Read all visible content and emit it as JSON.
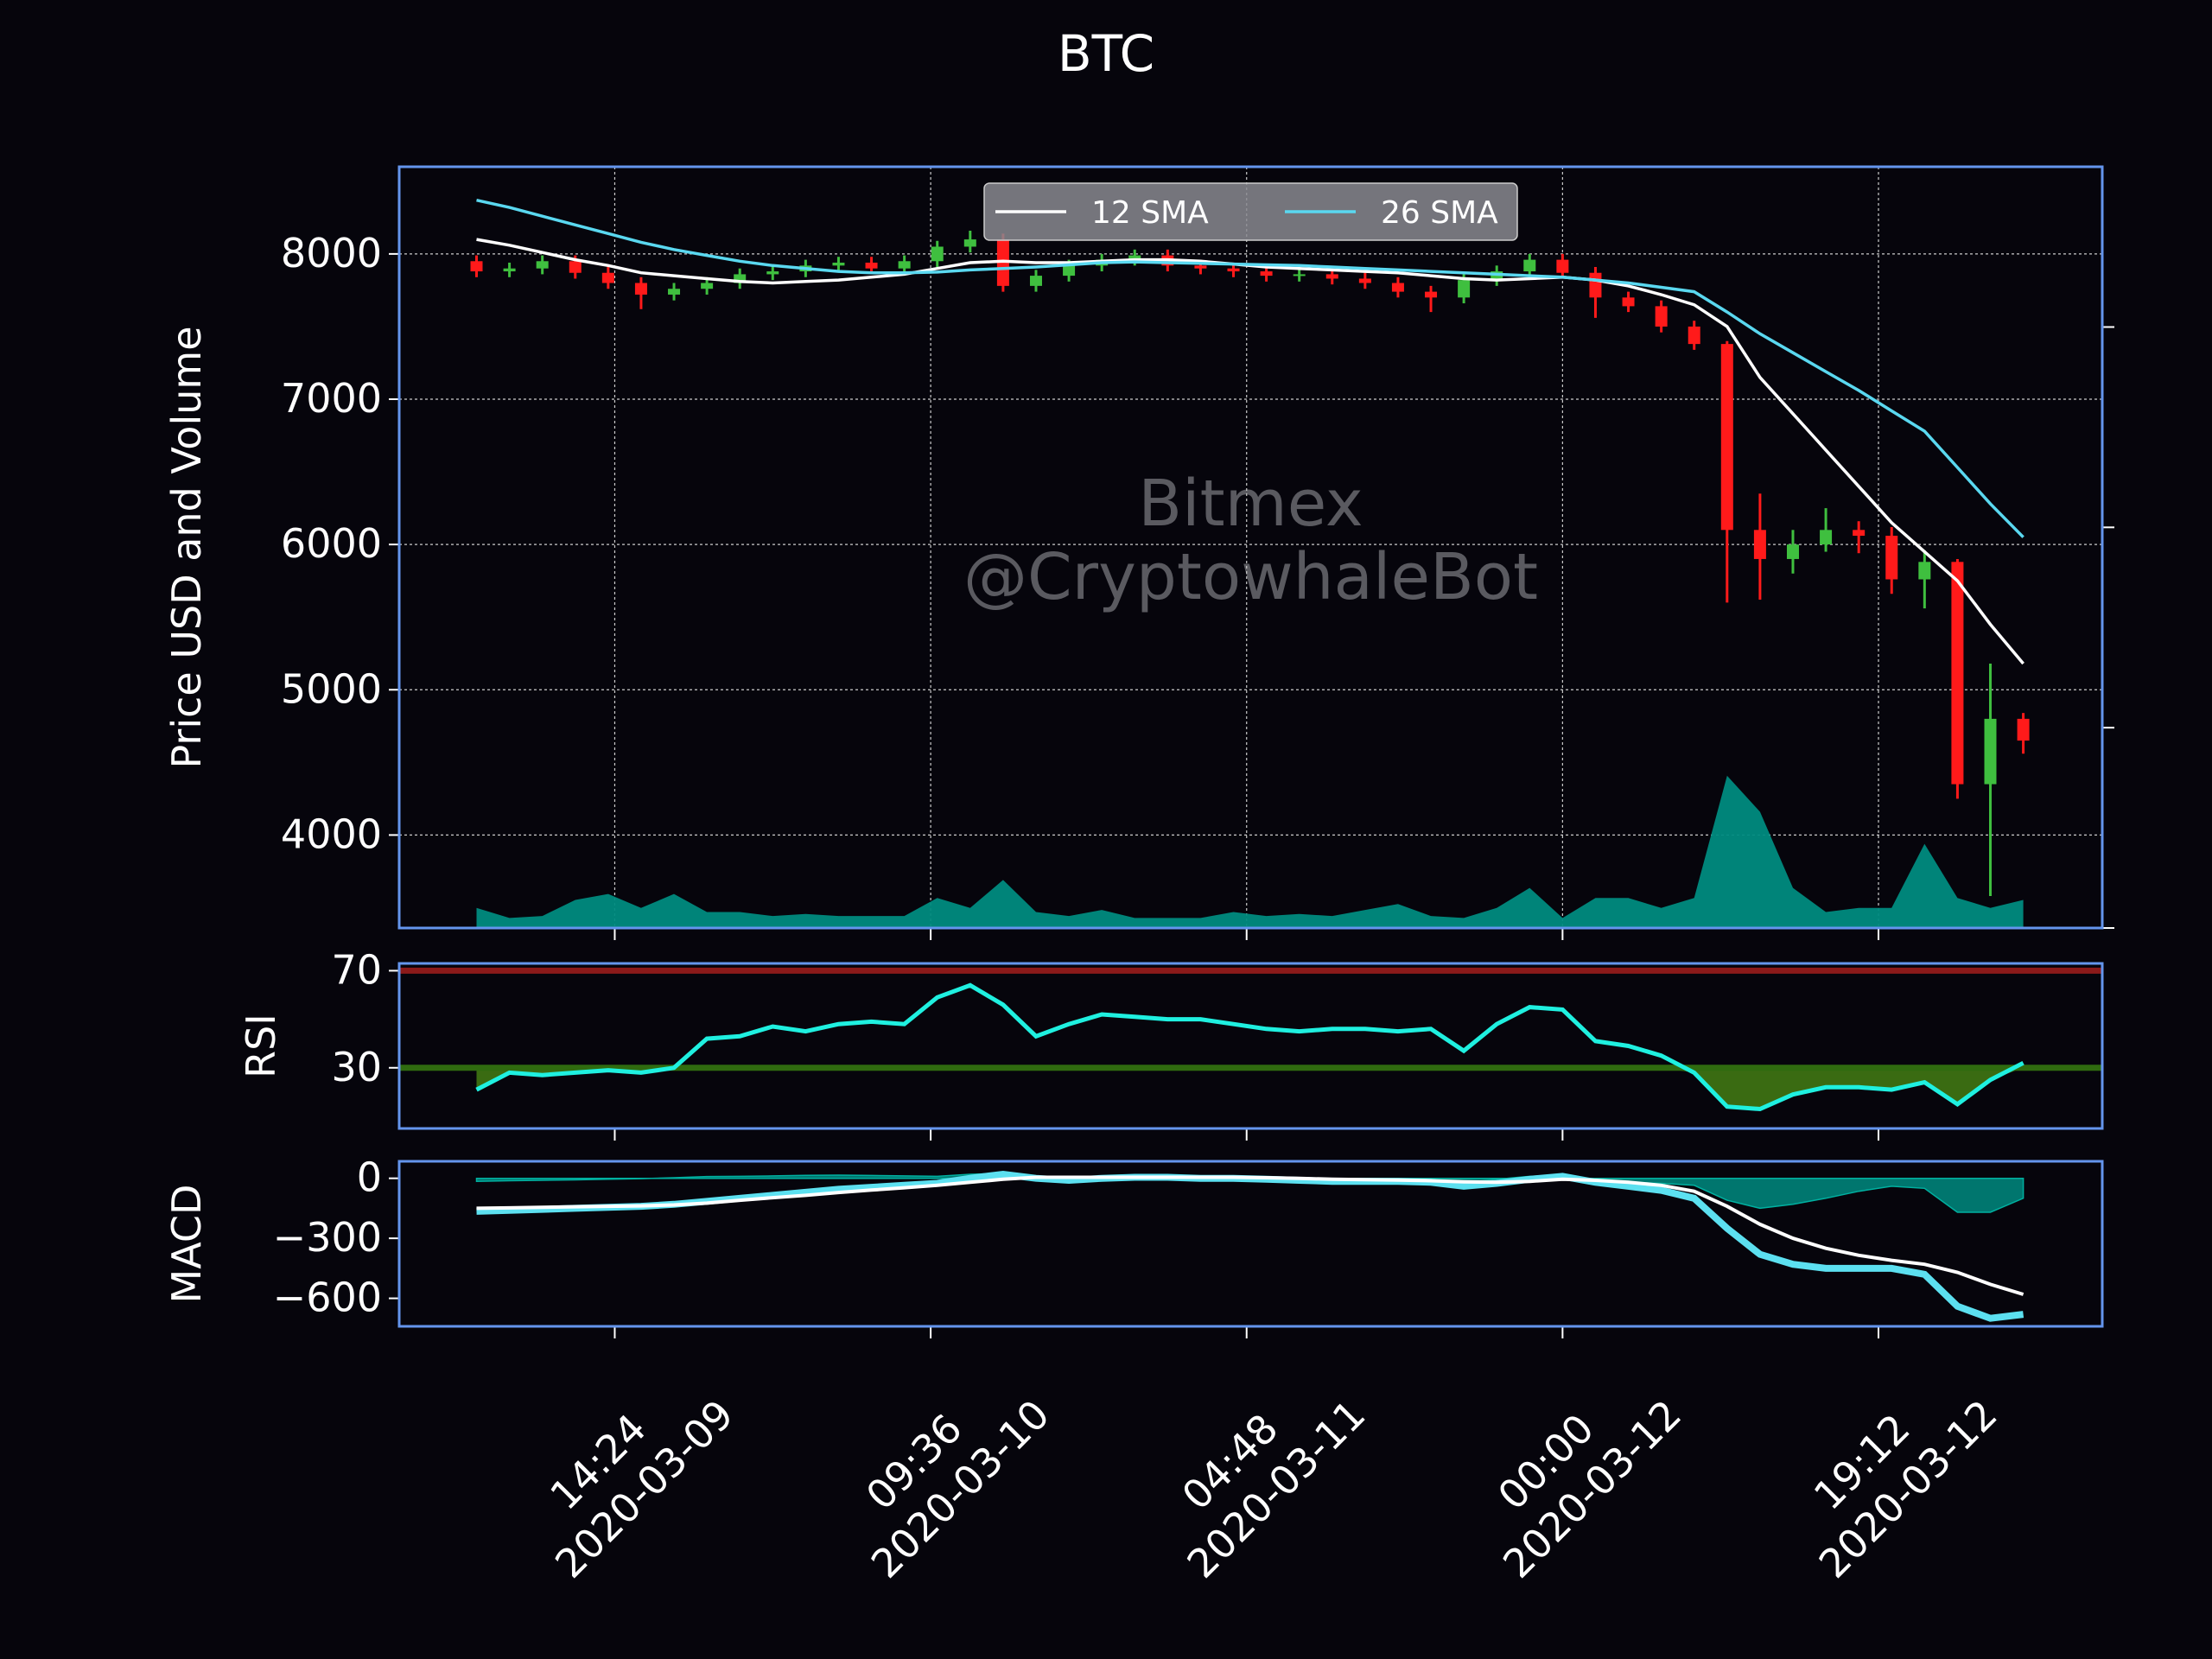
{
  "chart_data": {
    "type": "candlestick",
    "title": "BTC",
    "ylabel": "Price USD and Volume",
    "watermark": [
      "Bitmex",
      "@CryptowhaleBot"
    ],
    "x": [
      "2020-03-09 06:00",
      "2020-03-09 08:00",
      "2020-03-09 10:00",
      "2020-03-09 12:00",
      "2020-03-09 14:00",
      "2020-03-09 16:00",
      "2020-03-09 18:00",
      "2020-03-09 20:00",
      "2020-03-09 22:00",
      "2020-03-10 00:00",
      "2020-03-10 02:00",
      "2020-03-10 04:00",
      "2020-03-10 06:00",
      "2020-03-10 08:00",
      "2020-03-10 10:00",
      "2020-03-10 12:00",
      "2020-03-10 14:00",
      "2020-03-10 16:00",
      "2020-03-10 18:00",
      "2020-03-10 20:00",
      "2020-03-10 22:00",
      "2020-03-11 00:00",
      "2020-03-11 02:00",
      "2020-03-11 04:00",
      "2020-03-11 06:00",
      "2020-03-11 08:00",
      "2020-03-11 10:00",
      "2020-03-11 12:00",
      "2020-03-11 14:00",
      "2020-03-11 16:00",
      "2020-03-11 18:00",
      "2020-03-11 20:00",
      "2020-03-11 22:00",
      "2020-03-12 00:00",
      "2020-03-12 02:00",
      "2020-03-12 04:00",
      "2020-03-12 06:00",
      "2020-03-12 08:00",
      "2020-03-12 10:00",
      "2020-03-12 12:00",
      "2020-03-12 14:00",
      "2020-03-12 16:00",
      "2020-03-12 18:00",
      "2020-03-12 20:00",
      "2020-03-12 22:00",
      "2020-03-13 00:00",
      "2020-03-13 02:00",
      "2020-03-13 04:00"
    ],
    "xlim": [
      "2020-03-09 01:18",
      "2020-03-13 08:48"
    ],
    "xticks": [
      {
        "value": "2020-03-09 14:24",
        "label": [
          "14:24",
          "2020-03-09"
        ]
      },
      {
        "value": "2020-03-10 09:36",
        "label": [
          "09:36",
          "2020-03-10"
        ]
      },
      {
        "value": "2020-03-11 04:48",
        "label": [
          "04:48",
          "2020-03-11"
        ]
      },
      {
        "value": "2020-03-12 00:00",
        "label": [
          "00:00",
          "2020-03-12"
        ]
      },
      {
        "value": "2020-03-12 19:12",
        "label": [
          "19:12",
          "2020-03-12"
        ]
      }
    ],
    "ylim": [
      3360,
      8600
    ],
    "yticks": [
      4000,
      5000,
      6000,
      7000,
      8000
    ],
    "y2lim": [
      0,
      3.8
    ],
    "y2ticks": [
      0,
      1,
      2,
      3
    ],
    "grid": true,
    "legend": "upper center",
    "up_color": "#3fbf3f",
    "down_color": "#ff1a1a",
    "open": [
      7950,
      7880,
      7900,
      7950,
      7870,
      7800,
      7720,
      7760,
      7800,
      7860,
      7880,
      7920,
      7940,
      7900,
      7950,
      8050,
      8100,
      7780,
      7850,
      7920,
      7960,
      7990,
      7920,
      7900,
      7880,
      7850,
      7860,
      7830,
      7800,
      7740,
      7700,
      7820,
      7880,
      7960,
      7870,
      7700,
      7640,
      7500,
      7380,
      6100,
      5900,
      6000,
      6100,
      6060,
      5760,
      5880,
      4350,
      4800
    ],
    "high": [
      7990,
      7940,
      7990,
      7990,
      7910,
      7840,
      7800,
      7840,
      7900,
      7920,
      7960,
      7980,
      7980,
      7990,
      8090,
      8160,
      8140,
      7890,
      7960,
      8000,
      8030,
      8030,
      7960,
      7940,
      7920,
      7900,
      7900,
      7870,
      7840,
      7780,
      7860,
      7920,
      8000,
      8000,
      7910,
      7740,
      7680,
      7540,
      7400,
      6350,
      6100,
      6250,
      6160,
      6120,
      5960,
      5900,
      5180,
      4840
    ],
    "low": [
      7840,
      7840,
      7860,
      7830,
      7760,
      7620,
      7680,
      7720,
      7760,
      7820,
      7840,
      7880,
      7860,
      7860,
      7910,
      8010,
      7740,
      7740,
      7810,
      7880,
      7920,
      7880,
      7860,
      7840,
      7810,
      7810,
      7790,
      7760,
      7700,
      7600,
      7660,
      7780,
      7840,
      7830,
      7560,
      7600,
      7460,
      7340,
      5600,
      5620,
      5800,
      5950,
      5940,
      5660,
      5560,
      4250,
      3580,
      4560
    ],
    "close": [
      7880,
      7900,
      7950,
      7870,
      7800,
      7720,
      7760,
      7800,
      7860,
      7880,
      7920,
      7940,
      7900,
      7950,
      8050,
      8100,
      7780,
      7850,
      7920,
      7960,
      7990,
      7920,
      7900,
      7880,
      7850,
      7860,
      7830,
      7800,
      7740,
      7700,
      7820,
      7880,
      7960,
      7870,
      7700,
      7640,
      7500,
      7380,
      6100,
      5900,
      6000,
      6100,
      6060,
      5760,
      5880,
      4350,
      4800,
      4650
    ],
    "series": [
      {
        "name": "12 SMA",
        "color": "#ffffff",
        "values": [
          8100,
          8060,
          8010,
          7960,
          7920,
          7870,
          7850,
          7830,
          7810,
          7800,
          7810,
          7820,
          7840,
          7860,
          7900,
          7940,
          7950,
          7940,
          7940,
          7950,
          7960,
          7960,
          7950,
          7930,
          7910,
          7900,
          7890,
          7880,
          7870,
          7850,
          7830,
          7820,
          7830,
          7840,
          7820,
          7780,
          7720,
          7650,
          7500,
          7150,
          6900,
          6650,
          6400,
          6150,
          5950,
          5750,
          5450,
          5180
        ]
      },
      {
        "name": "26 SMA",
        "color": "#5ad8f0",
        "values": [
          8370,
          8320,
          8260,
          8200,
          8140,
          8080,
          8030,
          7990,
          7950,
          7920,
          7900,
          7880,
          7870,
          7870,
          7875,
          7890,
          7900,
          7910,
          7925,
          7940,
          7945,
          7940,
          7935,
          7930,
          7925,
          7920,
          7910,
          7900,
          7890,
          7880,
          7870,
          7860,
          7850,
          7840,
          7820,
          7800,
          7770,
          7740,
          7600,
          7450,
          7320,
          7190,
          7060,
          6920,
          6780,
          6530,
          6280,
          6050
        ]
      }
    ],
    "volume": {
      "axis": "y2",
      "color": "#008b80",
      "values": [
        0.1,
        0.05,
        0.06,
        0.14,
        0.17,
        0.1,
        0.17,
        0.08,
        0.08,
        0.06,
        0.07,
        0.06,
        0.06,
        0.06,
        0.15,
        0.1,
        0.24,
        0.08,
        0.06,
        0.09,
        0.05,
        0.05,
        0.05,
        0.08,
        0.06,
        0.07,
        0.06,
        0.09,
        0.12,
        0.06,
        0.05,
        0.1,
        0.2,
        0.05,
        0.15,
        0.15,
        0.1,
        0.15,
        0.76,
        0.58,
        0.2,
        0.08,
        0.1,
        0.1,
        0.42,
        0.15,
        0.1,
        0.14
      ]
    },
    "rsi": {
      "type": "line",
      "ylabel": "RSI",
      "ylim": [
        5,
        73
      ],
      "yticks": [
        30,
        70
      ],
      "color": "#1ff0e0",
      "fill_color": "#3a6b12",
      "levels": [
        {
          "value": 70,
          "color": "#8b1a1a"
        },
        {
          "value": 30,
          "color": "#2f6b0f"
        }
      ],
      "values": [
        21,
        28,
        27,
        28,
        29,
        28,
        30,
        42,
        43,
        47,
        45,
        48,
        49,
        48,
        59,
        64,
        56,
        43,
        48,
        52,
        51,
        50,
        50,
        48,
        46,
        45,
        46,
        46,
        45,
        46,
        37,
        48,
        55,
        54,
        41,
        39,
        35,
        28,
        14,
        13,
        19,
        22,
        22,
        21,
        24,
        15,
        25,
        32
      ]
    },
    "macd": {
      "type": "line",
      "ylabel": "MACD",
      "ylim": [
        -740,
        85
      ],
      "yticks": [
        0,
        {
          "value": -300,
          "label": "−300"
        },
        {
          "value": -600,
          "label": "−600"
        }
      ],
      "series": [
        {
          "color": "#5ce0f0",
          "values": [
            -165,
            -160,
            -155,
            -150,
            -145,
            -140,
            -130,
            -115,
            -100,
            -85,
            -70,
            -55,
            -45,
            -35,
            -25,
            0,
            20,
            0,
            -10,
            0,
            5,
            5,
            0,
            0,
            -5,
            -10,
            -15,
            -15,
            -15,
            -20,
            -40,
            -25,
            -5,
            10,
            -20,
            -40,
            -60,
            -100,
            -250,
            -380,
            -430,
            -450,
            -450,
            -450,
            -480,
            -640,
            -700,
            -680
          ]
        },
        {
          "color": "#ffffff",
          "values": [
            -150,
            -148,
            -145,
            -142,
            -140,
            -138,
            -133,
            -124,
            -110,
            -97,
            -85,
            -71,
            -59,
            -47,
            -35,
            -20,
            -5,
            5,
            5,
            5,
            5,
            5,
            5,
            5,
            3,
            0,
            -5,
            -7,
            -9,
            -12,
            -18,
            -20,
            -15,
            -5,
            -10,
            -20,
            -35,
            -65,
            -140,
            -230,
            -300,
            -350,
            -385,
            -410,
            -430,
            -470,
            -530,
            -580
          ]
        }
      ],
      "histogram": {
        "color": "#008b80",
        "values": [
          -15,
          -12,
          -10,
          -8,
          -5,
          -2,
          3,
          9,
          10,
          12,
          15,
          16,
          14,
          12,
          10,
          20,
          25,
          -5,
          -15,
          -5,
          0,
          0,
          -5,
          -5,
          -8,
          -10,
          -10,
          -8,
          -6,
          -8,
          -22,
          -5,
          10,
          15,
          -10,
          -20,
          -25,
          -35,
          -110,
          -150,
          -130,
          -100,
          -65,
          -40,
          -50,
          -170,
          -170,
          -100
        ]
      }
    }
  }
}
